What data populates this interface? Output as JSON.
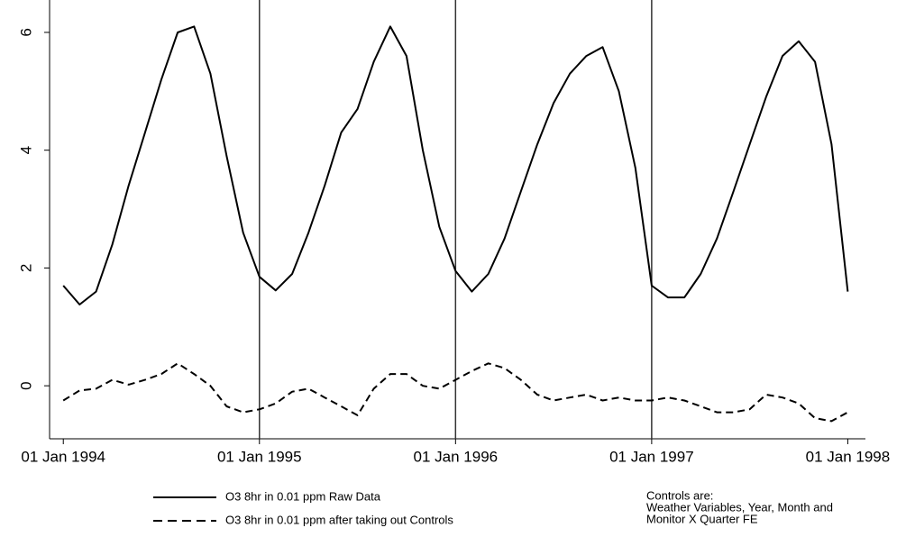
{
  "chart_data": {
    "type": "line",
    "x": [
      1994,
      1994.083,
      1994.167,
      1994.25,
      1994.333,
      1994.417,
      1994.5,
      1994.583,
      1994.667,
      1994.75,
      1994.833,
      1994.917,
      1995,
      1995.083,
      1995.167,
      1995.25,
      1995.333,
      1995.417,
      1995.5,
      1995.583,
      1995.667,
      1995.75,
      1995.833,
      1995.917,
      1996,
      1996.083,
      1996.167,
      1996.25,
      1996.333,
      1996.417,
      1996.5,
      1996.583,
      1996.667,
      1996.75,
      1996.833,
      1996.917,
      1997,
      1997.083,
      1997.167,
      1997.25,
      1997.333,
      1997.417,
      1997.5,
      1997.583,
      1997.667,
      1997.75,
      1997.833,
      1997.917,
      1998
    ],
    "series": [
      {
        "name": "O3 8hr in 0.01 ppm Raw Data",
        "color": "#000000",
        "dash": false,
        "values": [
          1.7,
          1.38,
          1.6,
          2.4,
          3.4,
          4.3,
          5.2,
          6.0,
          6.1,
          5.3,
          3.9,
          2.6,
          1.85,
          1.62,
          1.9,
          2.6,
          3.4,
          4.3,
          4.7,
          5.5,
          6.1,
          5.6,
          4.0,
          2.7,
          1.95,
          1.6,
          1.9,
          2.5,
          3.3,
          4.1,
          4.8,
          5.3,
          5.6,
          5.75,
          5.0,
          3.7,
          1.7,
          1.5,
          1.5,
          1.9,
          2.5,
          3.3,
          4.1,
          4.9,
          5.6,
          5.85,
          5.5,
          4.1,
          1.6
        ]
      },
      {
        "name": "O3 8hr in 0.01 ppm after taking out Controls",
        "color": "#000000",
        "dash": true,
        "values": [
          -0.25,
          -0.08,
          -0.05,
          0.1,
          0.02,
          0.1,
          0.2,
          0.38,
          0.2,
          0.0,
          -0.35,
          -0.45,
          -0.4,
          -0.3,
          -0.1,
          -0.05,
          -0.2,
          -0.35,
          -0.5,
          -0.05,
          0.2,
          0.2,
          0.0,
          -0.05,
          0.1,
          0.25,
          0.38,
          0.3,
          0.1,
          -0.15,
          -0.25,
          -0.2,
          -0.15,
          -0.25,
          -0.2,
          -0.25,
          -0.25,
          -0.2,
          -0.25,
          -0.35,
          -0.45,
          -0.45,
          -0.4,
          -0.15,
          -0.2,
          -0.3,
          -0.55,
          -0.6,
          -0.45
        ]
      }
    ],
    "xlim": [
      1993.93,
      1998.09
    ],
    "xticks": [
      {
        "value": 1994,
        "label": "01 Jan 1994"
      },
      {
        "value": 1995,
        "label": "01 Jan 1995"
      },
      {
        "value": 1996,
        "label": "01 Jan 1996"
      },
      {
        "value": 1997,
        "label": "01 Jan 1997"
      },
      {
        "value": 1998,
        "label": "01 Jan 1998"
      }
    ],
    "vlines": [
      1995,
      1996,
      1997
    ],
    "ylim": [
      -0.9,
      6.55
    ],
    "yticks": [
      0,
      2,
      4,
      6
    ],
    "note": [
      "Controls are:",
      "Weather Variables, Year, Month and",
      "Monitor X Quarter FE"
    ]
  }
}
